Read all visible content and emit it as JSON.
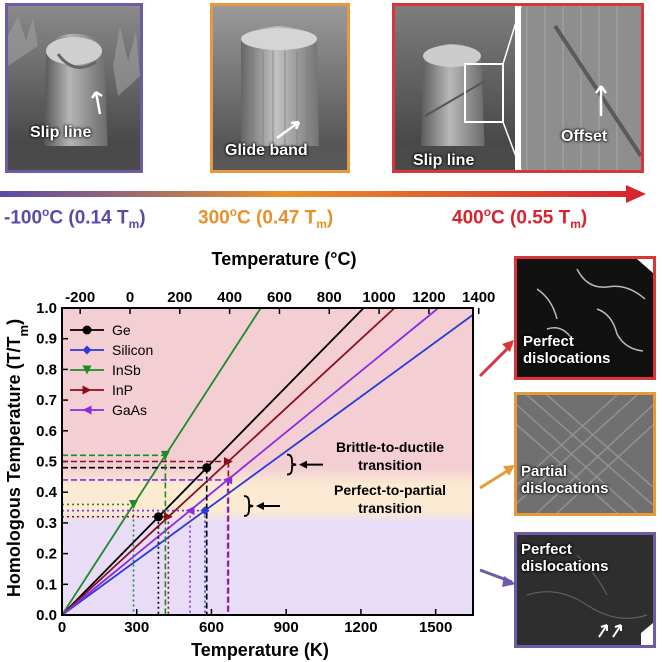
{
  "panels": {
    "low": {
      "label": "Slip line",
      "border": "#6e5aa6"
    },
    "mid": {
      "label": "Glide band",
      "border": "#e69a3a"
    },
    "high": {
      "label": "Slip line",
      "inset_label": "Offset",
      "border": "#d8363b"
    }
  },
  "temperature_bar": {
    "low": {
      "value": "-100",
      "deg": "o",
      "rest": "C (0.14 T",
      "sub": "m",
      "close": ")",
      "color": "#5b4aa8"
    },
    "mid": {
      "value": "300",
      "deg": "o",
      "rest": "C (0.47 T",
      "sub": "m",
      "close": ")",
      "color": "#e8902a"
    },
    "high": {
      "value": "400",
      "deg": "o",
      "rest": "C (0.55 T",
      "sub": "m",
      "close": ")",
      "color": "#d8242e"
    }
  },
  "tem_panels": {
    "top": {
      "label": "Perfect\ndislocations",
      "border": "#d8363b"
    },
    "middle": {
      "label": "Partial\ndislocations",
      "border": "#e69a3a"
    },
    "bottom": {
      "label": "Perfect\ndislocations",
      "border": "#6e5aa6"
    }
  },
  "chart_data": {
    "type": "line",
    "title": "",
    "xlabel": "Temperature (K)",
    "x2label": "Temperature (°C)",
    "ylabel_main": "Homologous Temperature (T/T",
    "ylabel_sub": "m",
    "ylabel_close": ")",
    "xlim": [
      0,
      1650
    ],
    "x2lim": [
      -273,
      1377
    ],
    "ylim": [
      0,
      1.0
    ],
    "x_ticks": [
      0,
      300,
      600,
      900,
      1200,
      1500
    ],
    "x2_ticks": [
      -200,
      0,
      200,
      400,
      600,
      800,
      1000,
      1200,
      1400
    ],
    "y_ticks": [
      0.0,
      0.1,
      0.2,
      0.3,
      0.4,
      0.5,
      0.6,
      0.7,
      0.8,
      0.9,
      1.0
    ],
    "bands": [
      {
        "name": "lower",
        "y": [
          0,
          0.32
        ],
        "color": "#e9dcf6"
      },
      {
        "name": "middle",
        "y": [
          0.32,
          0.44
        ],
        "color": "#fcebd2"
      },
      {
        "name": "upper",
        "y": [
          0.44,
          1.0
        ],
        "color": "#f3cfd4"
      }
    ],
    "band_edges": [
      {
        "y": [
          0.3,
          0.34
        ],
        "from": "#e9dcf6",
        "to": "#fcebd2"
      },
      {
        "y": [
          0.42,
          0.48
        ],
        "from": "#fcebd2",
        "to": "#f3cfd4"
      }
    ],
    "series": [
      {
        "name": "Ge",
        "color": "#000000",
        "slope_K": 1211,
        "marker": "circle"
      },
      {
        "name": "Silicon",
        "color": "#2a3bd8",
        "slope_K": 1687,
        "marker": "diamond"
      },
      {
        "name": "InSb",
        "color": "#1f8a2a",
        "slope_K": 798,
        "marker": "triangle-down"
      },
      {
        "name": "InP",
        "color": "#8b0f1a",
        "slope_K": 1335,
        "marker": "triangle-right"
      },
      {
        "name": "GaAs",
        "color": "#8a2be2",
        "slope_K": 1511,
        "marker": "triangle-left"
      }
    ],
    "markers": [
      {
        "series": "Ge",
        "x": 387,
        "y": 0.32
      },
      {
        "series": "Ge",
        "x": 581,
        "y": 0.48
      },
      {
        "series": "InSb",
        "x": 287,
        "y": 0.36
      },
      {
        "series": "InSb",
        "x": 415,
        "y": 0.52
      },
      {
        "series": "InP",
        "x": 427,
        "y": 0.32
      },
      {
        "series": "InP",
        "x": 668,
        "y": 0.5
      },
      {
        "series": "Silicon",
        "x": 574,
        "y": 0.34
      },
      {
        "series": "GaAs",
        "x": 514,
        "y": 0.34
      },
      {
        "series": "GaAs",
        "x": 665,
        "y": 0.44
      }
    ],
    "annotations": [
      {
        "text": "Brittle-to-ductile\ntransition",
        "color": "#000000"
      },
      {
        "text": "Perfect-to-partial\ntransition",
        "color": "#000000"
      }
    ],
    "legend_position": "top-left"
  }
}
